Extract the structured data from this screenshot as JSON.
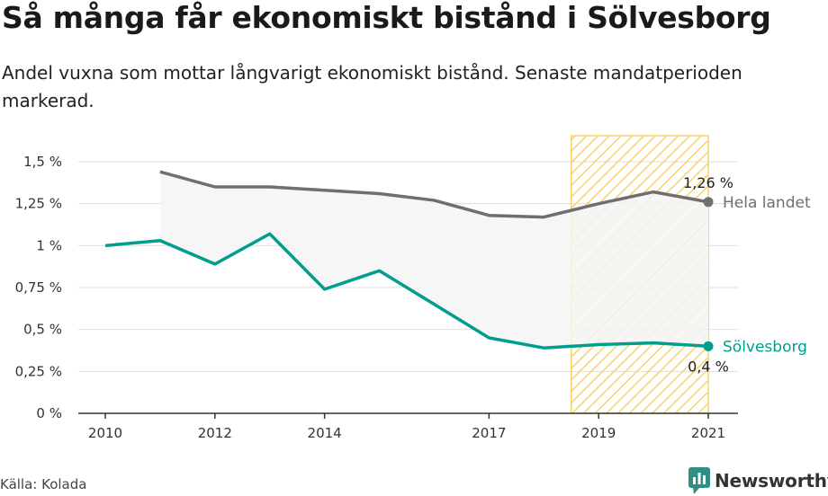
{
  "title": "Så många får ekonomiskt bistånd i Sölvesborg",
  "subtitle": "Andel vuxna som mottar långvarigt ekonomiskt bistånd. Senaste mandatperioden markerad.",
  "source": "Källa: Kolada",
  "brand": {
    "name": "Newsworthy",
    "icon": "newsworthy-logo-icon"
  },
  "colors": {
    "solvesborg": "#009e8c",
    "hela_landet": "#6e6e73",
    "highlight": "#f5d36b",
    "area": "#f4f4f4",
    "grid": "#dddddd"
  },
  "chart_data": {
    "type": "line",
    "x": [
      2010,
      2011,
      2012,
      2013,
      2014,
      2015,
      2016,
      2017,
      2018,
      2019,
      2020,
      2021
    ],
    "xticks": [
      "2010",
      "2012",
      "2014",
      "2017",
      "2019",
      "2021"
    ],
    "xlim": [
      2010,
      2021
    ],
    "yticks": [
      "0 %",
      "0,25 %",
      "0,5 %",
      "0,75 %",
      "1 %",
      "1,25 %",
      "1,5 %"
    ],
    "ylim": [
      0,
      1.5
    ],
    "grid": true,
    "highlight_period": [
      2018.5,
      2021
    ],
    "series": [
      {
        "name": "Hela landet",
        "values": [
          null,
          1.44,
          1.35,
          1.35,
          1.33,
          1.31,
          1.27,
          1.18,
          1.17,
          1.25,
          1.32,
          1.26
        ],
        "end_label": "1,26 %"
      },
      {
        "name": "Sölvesborg",
        "values": [
          1.0,
          1.03,
          0.89,
          1.07,
          0.74,
          0.85,
          0.65,
          0.45,
          0.39,
          0.41,
          0.42,
          0.4
        ],
        "end_label": "0,4 %"
      }
    ]
  }
}
